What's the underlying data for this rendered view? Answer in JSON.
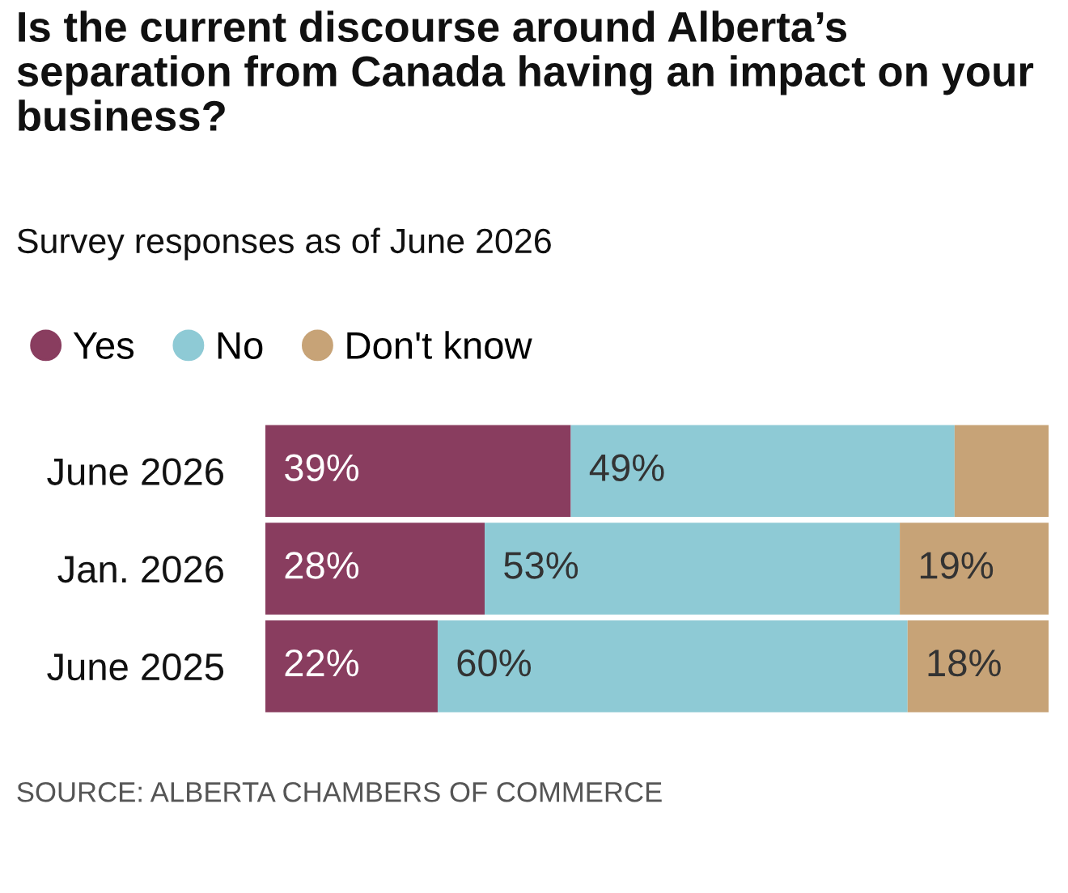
{
  "chart_data": {
    "type": "bar",
    "orientation": "horizontal",
    "stacked": true,
    "title": "Is the current discourse around Alberta’s separation from Canada having an impact on your business?",
    "subtitle": "Survey responses as of June 2026",
    "categories": [
      "June 2026",
      "Jan. 2026",
      "June 2025"
    ],
    "series": [
      {
        "name": "Yes",
        "color": "#893d5f",
        "values": [
          39,
          28,
          22
        ],
        "value_labels": [
          "39%",
          "28%",
          "22%"
        ]
      },
      {
        "name": "No",
        "color": "#8ecad5",
        "values": [
          49,
          53,
          60
        ],
        "value_labels": [
          "49%",
          "53%",
          "60%"
        ]
      },
      {
        "name": "Don't know",
        "color": "#c7a377",
        "values": [
          12,
          19,
          18
        ],
        "value_labels": [
          null,
          "19%",
          "18%"
        ]
      }
    ],
    "xlim": [
      0,
      100
    ],
    "tick_labels": "y",
    "legend": "top left",
    "annotations": [
      "SOURCE: ALBERTA CHAMBERS OF COMMERCE"
    ]
  }
}
